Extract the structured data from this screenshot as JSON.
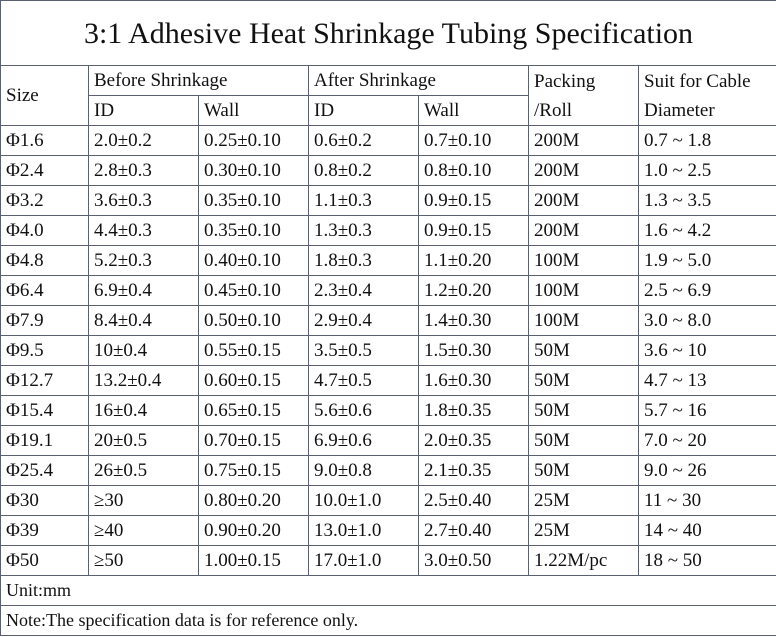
{
  "title": "3:1 Adhesive Heat Shrinkage Tubing Specification",
  "header": {
    "size": "Size",
    "before": "Before Shrinkage",
    "after": "After Shrinkage",
    "id": "ID",
    "wall": "Wall",
    "packing": [
      "Packing",
      "/Roll"
    ],
    "suit": [
      "Suit for Cable",
      "Diameter"
    ]
  },
  "rows": [
    [
      "Φ1.6",
      "2.0±0.2",
      "0.25±0.10",
      "0.6±0.2",
      "0.7±0.10",
      "200M",
      "0.7 ~ 1.8"
    ],
    [
      "Φ2.4",
      "2.8±0.3",
      "0.30±0.10",
      "0.8±0.2",
      "0.8±0.10",
      "200M",
      "1.0 ~ 2.5"
    ],
    [
      "Φ3.2",
      "3.6±0.3",
      "0.35±0.10",
      "1.1±0.3",
      "0.9±0.15",
      "200M",
      "1.3 ~ 3.5"
    ],
    [
      "Φ4.0",
      "4.4±0.3",
      "0.35±0.10",
      "1.3±0.3",
      "0.9±0.15",
      "200M",
      "1.6 ~ 4.2"
    ],
    [
      "Φ4.8",
      "5.2±0.3",
      "0.40±0.10",
      "1.8±0.3",
      "1.1±0.20",
      "100M",
      "1.9 ~ 5.0"
    ],
    [
      "Φ6.4",
      "6.9±0.4",
      "0.45±0.10",
      "2.3±0.4",
      "1.2±0.20",
      "100M",
      "2.5 ~ 6.9"
    ],
    [
      "Φ7.9",
      "8.4±0.4",
      "0.50±0.10",
      "2.9±0.4",
      "1.4±0.30",
      "100M",
      "3.0 ~ 8.0"
    ],
    [
      "Φ9.5",
      "10±0.4",
      "0.55±0.15",
      "3.5±0.5",
      "1.5±0.30",
      "50M",
      "3.6 ~ 10"
    ],
    [
      "Φ12.7",
      "13.2±0.4",
      "0.60±0.15",
      "4.7±0.5",
      "1.6±0.30",
      "50M",
      "4.7 ~ 13"
    ],
    [
      "Φ15.4",
      "16±0.4",
      "0.65±0.15",
      "5.6±0.6",
      "1.8±0.35",
      "50M",
      "5.7 ~ 16"
    ],
    [
      "Φ19.1",
      "20±0.5",
      "0.70±0.15",
      "6.9±0.6",
      "2.0±0.35",
      "50M",
      "7.0 ~ 20"
    ],
    [
      "Φ25.4",
      "26±0.5",
      "0.75±0.15",
      "9.0±0.8",
      "2.1±0.35",
      "50M",
      "9.0 ~ 26"
    ],
    [
      "Φ30",
      "≥30",
      "0.80±0.20",
      "10.0±1.0",
      "2.5±0.40",
      "25M",
      "11 ~ 30"
    ],
    [
      "Φ39",
      "≥40",
      "0.90±0.20",
      "13.0±1.0",
      "2.7±0.40",
      "25M",
      "14 ~ 40"
    ],
    [
      "Φ50",
      "≥50",
      "1.00±0.15",
      "17.0±1.0",
      "3.0±0.50",
      "1.22M/pc",
      "18 ~ 50"
    ]
  ],
  "unit": "Unit:mm",
  "note": "Note:The specification data is for reference only."
}
